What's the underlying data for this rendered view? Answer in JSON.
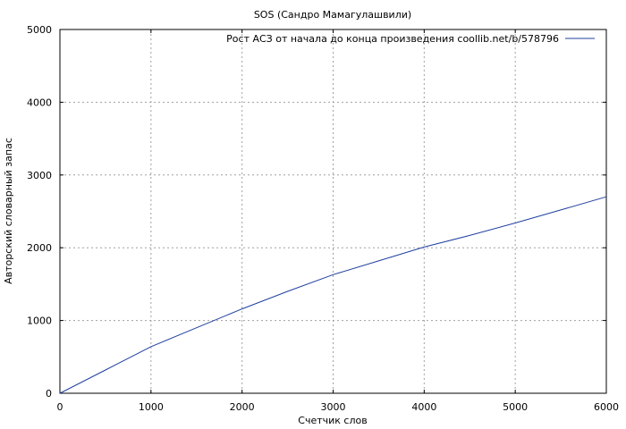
{
  "chart_data": {
    "type": "line",
    "title": "SOS (Сандро Мамагулашвили)",
    "xlabel": "Счетчик слов",
    "ylabel": "Авторский словарный запас",
    "xlim": [
      0,
      6000
    ],
    "ylim": [
      0,
      5000
    ],
    "xticks": [
      0,
      1000,
      2000,
      3000,
      4000,
      5000,
      6000
    ],
    "yticks": [
      0,
      1000,
      2000,
      3000,
      4000,
      5000
    ],
    "grid": true,
    "legend_position": "top-right",
    "series": [
      {
        "name": "Рост АСЗ от начала до конца произведения coollib.net/b/578796",
        "color": "#1f3f9f",
        "points": [
          [
            0,
            0
          ],
          [
            250,
            160
          ],
          [
            500,
            320
          ],
          [
            750,
            480
          ],
          [
            1000,
            640
          ],
          [
            1500,
            900
          ],
          [
            2000,
            1160
          ],
          [
            2500,
            1400
          ],
          [
            3000,
            1630
          ],
          [
            3500,
            1820
          ],
          [
            4000,
            2010
          ],
          [
            4500,
            2170
          ],
          [
            5000,
            2340
          ],
          [
            5500,
            2520
          ],
          [
            6000,
            2700
          ]
        ]
      }
    ]
  }
}
